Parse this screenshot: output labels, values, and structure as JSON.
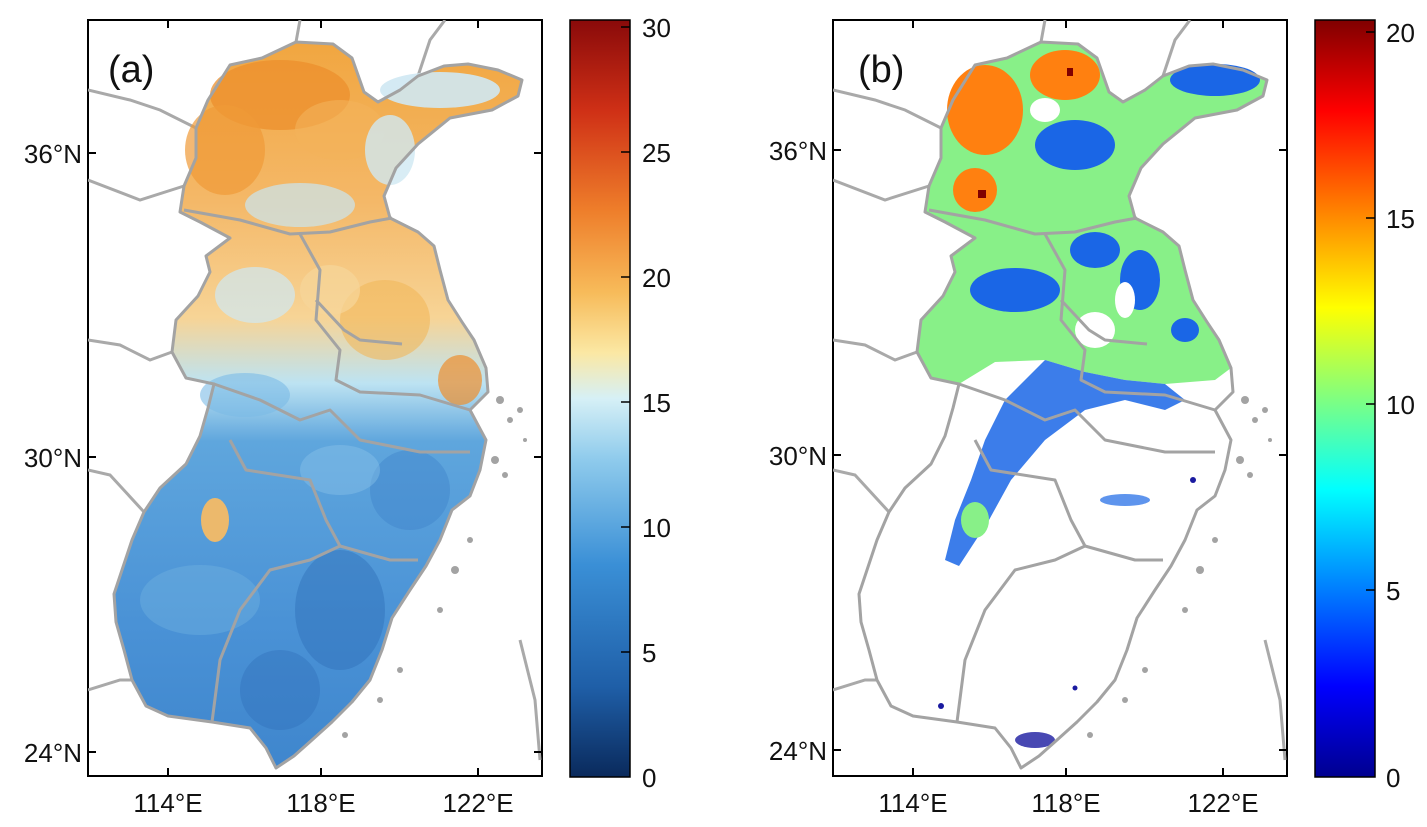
{
  "panels": [
    {
      "label": "(a)",
      "x_ticks": [
        "114°E",
        "118°E",
        "122°E"
      ],
      "y_ticks": [
        "36°N",
        "30°N",
        "24°N"
      ],
      "colorbar": {
        "ticks": [
          "30",
          "25",
          "20",
          "15",
          "10",
          "5",
          "0"
        ],
        "range": [
          0,
          30
        ],
        "colormap": [
          "#0a2a5c",
          "#1f5fa8",
          "#3a8fd6",
          "#8fcbec",
          "#d6f0f6",
          "#fbe8a4",
          "#f7bb5a",
          "#ee7d2a",
          "#cf3016",
          "#8a0a0a"
        ]
      }
    },
    {
      "label": "(b)",
      "x_ticks": [
        "114°E",
        "118°E",
        "122°E"
      ],
      "y_ticks": [
        "36°N",
        "30°N",
        "24°N"
      ],
      "colorbar": {
        "ticks": [
          "20",
          "15",
          "10",
          "5",
          "0"
        ],
        "range": [
          0,
          20
        ],
        "colormap": [
          "#00008f",
          "#0000ff",
          "#0080ff",
          "#00ffff",
          "#80ff80",
          "#ffff00",
          "#ff8000",
          "#ff0000",
          "#800000"
        ]
      }
    }
  ]
}
